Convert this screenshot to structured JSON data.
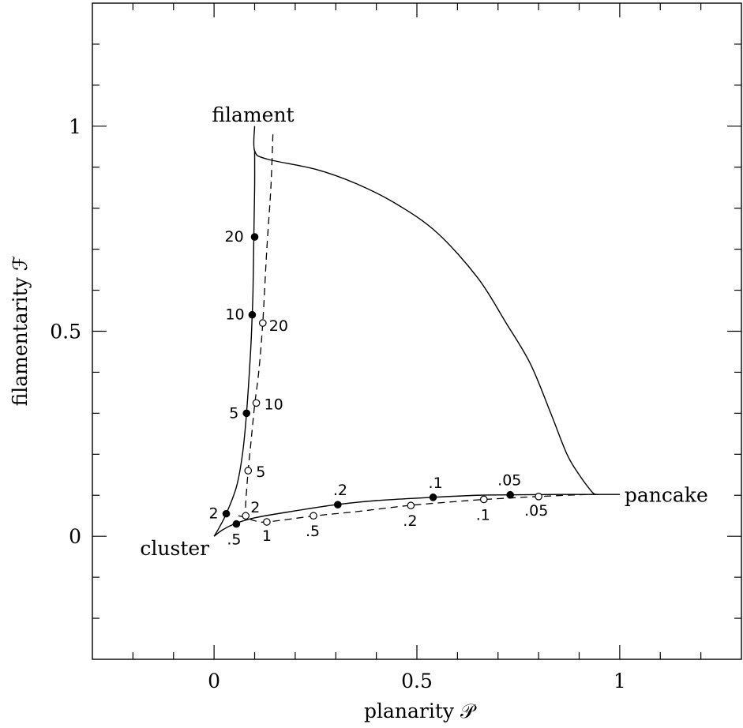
{
  "chart_data": {
    "type": "line",
    "xlabel": "planarity 𝒫",
    "ylabel": "filamentarity ℱ",
    "xlim": [
      -0.3,
      1.3
    ],
    "ylim": [
      -0.3,
      1.3
    ],
    "x_ticks": [
      0,
      0.5,
      1
    ],
    "x_tick_labels": [
      "0",
      "0.5",
      "1"
    ],
    "y_ticks": [
      0,
      0.5,
      1
    ],
    "y_tick_labels": [
      "0",
      "0.5",
      "1"
    ],
    "minor_tick_step": 0.1,
    "grid": false,
    "annotations": [
      {
        "text": "filament",
        "x": 0.1,
        "y": 1.0
      },
      {
        "text": "cluster",
        "x": 0.0,
        "y": 0.0
      },
      {
        "text": "pancake",
        "x": 1.0,
        "y": 0.1
      }
    ],
    "series": [
      {
        "style": "solid",
        "points": [
          [
            0.1,
            1.0
          ],
          [
            0.1,
            0.94
          ],
          [
            0.13,
            0.92
          ],
          [
            0.25,
            0.895
          ],
          [
            0.35,
            0.86
          ],
          [
            0.45,
            0.81
          ],
          [
            0.55,
            0.74
          ],
          [
            0.65,
            0.63
          ],
          [
            0.72,
            0.52
          ],
          [
            0.78,
            0.42
          ],
          [
            0.83,
            0.3
          ],
          [
            0.87,
            0.2
          ],
          [
            0.9,
            0.15
          ],
          [
            0.93,
            0.11
          ],
          [
            0.94,
            0.102
          ]
        ]
      },
      {
        "style": "solid",
        "points": [
          [
            0.1,
            0.94
          ],
          [
            0.1,
            0.85
          ],
          [
            0.098,
            0.73
          ],
          [
            0.096,
            0.6
          ],
          [
            0.094,
            0.54
          ],
          [
            0.09,
            0.45
          ],
          [
            0.08,
            0.3
          ],
          [
            0.07,
            0.2
          ],
          [
            0.055,
            0.12
          ],
          [
            0.03,
            0.055
          ],
          [
            0.012,
            0.02
          ],
          [
            0.0,
            0.0
          ]
        ]
      },
      {
        "style": "solid",
        "points": [
          [
            0.0,
            0.0
          ],
          [
            0.02,
            0.015
          ],
          [
            0.05,
            0.03
          ],
          [
            0.1,
            0.045
          ],
          [
            0.2,
            0.062
          ],
          [
            0.3,
            0.077
          ],
          [
            0.4,
            0.087
          ],
          [
            0.54,
            0.095
          ],
          [
            0.65,
            0.1
          ],
          [
            0.73,
            0.101
          ],
          [
            0.85,
            0.102
          ],
          [
            0.94,
            0.102
          ],
          [
            1.0,
            0.102
          ]
        ]
      },
      {
        "style": "dashed",
        "points": [
          [
            0.145,
            0.98
          ],
          [
            0.14,
            0.85
          ],
          [
            0.13,
            0.7
          ],
          [
            0.12,
            0.52
          ],
          [
            0.11,
            0.4
          ],
          [
            0.1,
            0.32
          ],
          [
            0.09,
            0.22
          ],
          [
            0.084,
            0.16
          ],
          [
            0.078,
            0.08
          ],
          [
            0.078,
            0.05
          ]
        ]
      },
      {
        "style": "dashed",
        "points": [
          [
            0.06,
            0.05
          ],
          [
            0.08,
            0.045
          ],
          [
            0.1,
            0.038
          ],
          [
            0.13,
            0.035
          ],
          [
            0.25,
            0.05
          ],
          [
            0.35,
            0.06
          ],
          [
            0.48,
            0.075
          ],
          [
            0.6,
            0.085
          ],
          [
            0.67,
            0.09
          ],
          [
            0.8,
            0.097
          ],
          [
            0.92,
            0.102
          ],
          [
            0.95,
            0.102
          ]
        ]
      }
    ],
    "markers": [
      {
        "x": 0.1,
        "y": 0.73,
        "filled": true,
        "label": "20",
        "dx": -38,
        "dy": 6
      },
      {
        "x": 0.094,
        "y": 0.54,
        "filled": true,
        "label": "10",
        "dx": -34,
        "dy": 6
      },
      {
        "x": 0.08,
        "y": 0.3,
        "filled": true,
        "label": "5",
        "dx": -22,
        "dy": 6
      },
      {
        "x": 0.03,
        "y": 0.055,
        "filled": true,
        "label": "2",
        "dx": -22,
        "dy": 6
      },
      {
        "x": 0.055,
        "y": 0.03,
        "filled": true,
        "label": ".5",
        "dx": -12,
        "dy": 26
      },
      {
        "x": 0.305,
        "y": 0.077,
        "filled": true,
        "label": ".2",
        "dx": -6,
        "dy": -12
      },
      {
        "x": 0.54,
        "y": 0.095,
        "filled": true,
        "label": ".1",
        "dx": -6,
        "dy": -12
      },
      {
        "x": 0.73,
        "y": 0.101,
        "filled": true,
        "label": ".05",
        "dx": -16,
        "dy": -12
      },
      {
        "x": 0.12,
        "y": 0.52,
        "filled": false,
        "label": "20",
        "dx": 8,
        "dy": 10
      },
      {
        "x": 0.104,
        "y": 0.325,
        "filled": false,
        "label": "10",
        "dx": 10,
        "dy": 8
      },
      {
        "x": 0.084,
        "y": 0.16,
        "filled": false,
        "label": "5",
        "dx": 10,
        "dy": 8
      },
      {
        "x": 0.078,
        "y": 0.05,
        "filled": false,
        "label": "2",
        "dx": 6,
        "dy": -4
      },
      {
        "x": 0.13,
        "y": 0.035,
        "filled": false,
        "label": "1",
        "dx": -6,
        "dy": 24
      },
      {
        "x": 0.245,
        "y": 0.05,
        "filled": false,
        "label": ".5",
        "dx": -10,
        "dy": 26
      },
      {
        "x": 0.485,
        "y": 0.075,
        "filled": false,
        "label": ".2",
        "dx": -10,
        "dy": 26
      },
      {
        "x": 0.665,
        "y": 0.09,
        "filled": false,
        "label": ".1",
        "dx": -10,
        "dy": 26
      },
      {
        "x": 0.8,
        "y": 0.097,
        "filled": false,
        "label": ".05",
        "dx": -18,
        "dy": 24
      }
    ]
  }
}
